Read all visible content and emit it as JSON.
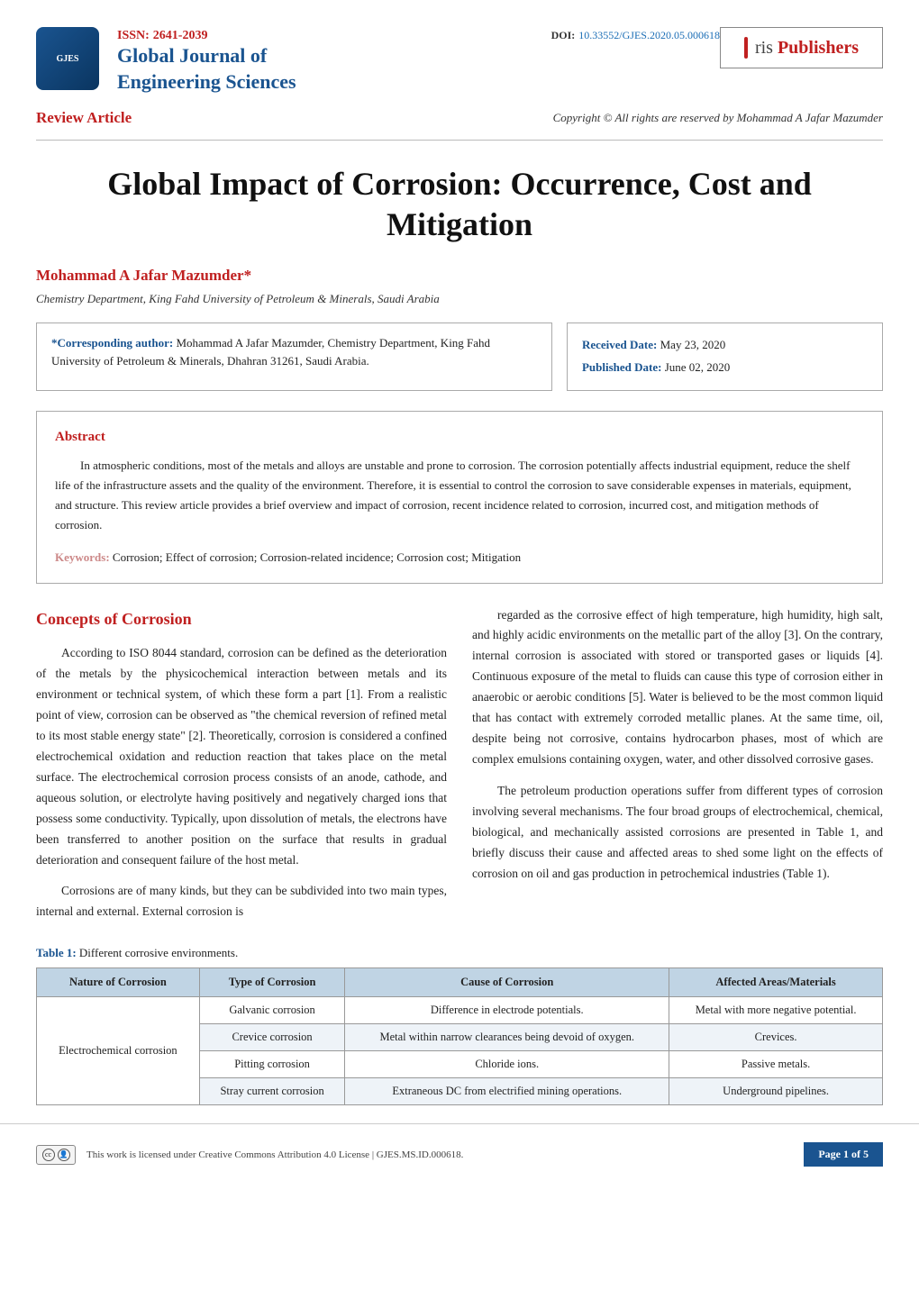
{
  "header": {
    "logo_text": "GJES",
    "issn_label": "ISSN:",
    "issn_value": "2641-2039",
    "doi_label": "DOI:",
    "doi_value": "10.33552/GJES.2020.05.000618",
    "journal_name_1": "Global Journal of",
    "journal_name_2": "Engineering Sciences",
    "publisher_prefix": "ris",
    "publisher_suffix": "Publishers"
  },
  "article_meta": {
    "type": "Review Article",
    "copyright": "Copyright © All rights are reserved by Mohammad A Jafar Mazumder"
  },
  "title": "Global Impact of Corrosion: Occurrence, Cost and Mitigation",
  "author": "Mohammad A Jafar Mazumder*",
  "affiliation": "Chemistry Department, King Fahd University of Petroleum & Minerals, Saudi Arabia",
  "corresponding": {
    "label": "*Corresponding author:",
    "text": "Mohammad A Jafar Mazumder, Chemistry Department, King Fahd University of Petroleum & Minerals, Dhahran 31261, Saudi Arabia."
  },
  "dates": {
    "received_label": "Received Date:",
    "received_value": "May 23, 2020",
    "published_label": "Published Date:",
    "published_value": "June 02, 2020"
  },
  "abstract": {
    "heading": "Abstract",
    "body": "In atmospheric conditions, most of the metals and alloys are unstable and prone to corrosion. The corrosion potentially affects industrial equipment, reduce the shelf life of the infrastructure assets and the quality of the environment. Therefore, it is essential to control the corrosion to save considerable expenses in materials, equipment, and structure. This review article provides a brief overview and impact of corrosion, recent incidence related to corrosion, incurred cost, and mitigation methods of corrosion.",
    "keywords_label": "Keywords:",
    "keywords_value": "Corrosion; Effect of corrosion; Corrosion-related incidence; Corrosion cost; Mitigation"
  },
  "section": {
    "heading": "Concepts of Corrosion",
    "col1_p1": "According to ISO 8044 standard, corrosion can be defined as the deterioration of the metals by the physicochemical interaction between metals and its environment or technical system, of which these form a part [1]. From a realistic point of view, corrosion can be observed as \"the chemical reversion of refined metal to its most stable energy state\" [2]. Theoretically, corrosion is considered a confined electrochemical oxidation and reduction reaction that takes place on the metal surface. The electrochemical corrosion process consists of an anode, cathode, and aqueous solution, or electrolyte having positively and negatively charged ions that possess some conductivity. Typically, upon dissolution of metals, the electrons have been transferred to another position on the surface that results in gradual deterioration and consequent failure of the host metal.",
    "col1_p2": "Corrosions are of many kinds, but they can be subdivided into two main types, internal and external. External corrosion is",
    "col2_p1": "regarded as the corrosive effect of high temperature, high humidity, high salt, and highly acidic environments on the metallic part of the alloy [3]. On the contrary, internal corrosion is associated with stored or transported gases or liquids [4]. Continuous exposure of the metal to fluids can cause this type of corrosion either in anaerobic or aerobic conditions [5]. Water is believed to be the most common liquid that has contact with extremely corroded metallic planes. At the same time, oil, despite being not corrosive, contains hydrocarbon phases, most of which are complex emulsions containing oxygen, water, and other dissolved corrosive gases.",
    "col2_p2": "The petroleum production operations suffer from different types of corrosion involving several mechanisms. The four broad groups of electrochemical, chemical, biological, and mechanically assisted corrosions are presented in Table 1, and briefly discuss their cause and affected areas to shed some light on the effects of corrosion on oil and gas production in petrochemical industries (Table 1)."
  },
  "table": {
    "caption_label": "Table 1:",
    "caption_text": "Different corrosive environments.",
    "headers": [
      "Nature of Corrosion",
      "Type of Corrosion",
      "Cause of Corrosion",
      "Affected Areas/Materials"
    ],
    "group_label": "Electrochemical corrosion",
    "rows": [
      [
        "Galvanic corrosion",
        "Difference in electrode potentials.",
        "Metal with more negative potential."
      ],
      [
        "Crevice corrosion",
        "Metal within narrow clearances being devoid of oxygen.",
        "Crevices."
      ],
      [
        "Pitting corrosion",
        "Chloride ions.",
        "Passive metals."
      ],
      [
        "Stray current corrosion",
        "Extraneous DC from electrified mining operations.",
        "Underground pipelines."
      ]
    ]
  },
  "footer": {
    "license_text": "This work is licensed under Creative Commons Attribution 4.0 License",
    "ms_id": "GJES.MS.ID.000618.",
    "page": "Page 1 of 5"
  },
  "colors": {
    "red": "#c02020",
    "blue": "#1a5490",
    "link_blue": "#1a6db5",
    "table_header_bg": "#c0d4e4",
    "table_row_alt": "#eef3f8"
  }
}
